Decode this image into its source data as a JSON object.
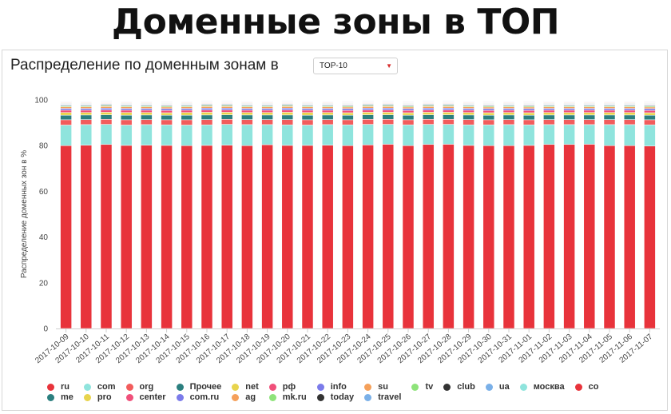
{
  "page": {
    "heading": "Доменные зоны в ТОП"
  },
  "widget": {
    "title": "Распределение по доменным зонам в",
    "select": {
      "value": "TOP-10"
    }
  },
  "chart_data": {
    "type": "bar",
    "stacked": true,
    "ylabel": "Распределение доменных зон в %",
    "xlabel": "",
    "ylim": [
      0,
      100
    ],
    "yticks": [
      0,
      20,
      40,
      60,
      80,
      100
    ],
    "grid": false,
    "legend_position": "bottom",
    "categories": [
      "2017-10-09",
      "2017-10-10",
      "2017-10-11",
      "2017-10-12",
      "2017-10-13",
      "2017-10-14",
      "2017-10-15",
      "2017-10-16",
      "2017-10-17",
      "2017-10-18",
      "2017-10-19",
      "2017-10-20",
      "2017-10-21",
      "2017-10-22",
      "2017-10-23",
      "2017-10-24",
      "2017-10-25",
      "2017-10-26",
      "2017-10-27",
      "2017-10-28",
      "2017-10-29",
      "2017-10-30",
      "2017-10-31",
      "2017-11-01",
      "2017-11-02",
      "2017-11-03",
      "2017-11-04",
      "2017-11-05",
      "2017-11-06",
      "2017-11-07"
    ],
    "series": [
      {
        "name": "ru",
        "color": "#e8333b",
        "values": [
          80.0,
          80.2,
          80.5,
          80.1,
          80.2,
          80.1,
          80.0,
          80.1,
          80.2,
          80.0,
          80.4,
          80.1,
          80.1,
          80.2,
          80.0,
          80.3,
          80.6,
          80.0,
          80.5,
          80.6,
          80.1,
          80.0,
          80.0,
          80.1,
          80.5,
          80.5,
          80.6,
          80.0,
          80.0,
          79.8
        ]
      },
      {
        "name": "com",
        "color": "#8fe4dd",
        "values": [
          9.0,
          9.0,
          8.8,
          8.9,
          9.0,
          9.0,
          9.0,
          9.0,
          9.1,
          9.2,
          8.8,
          9.0,
          8.9,
          9.0,
          9.1,
          9.0,
          8.7,
          9.1,
          8.8,
          8.7,
          9.0,
          9.1,
          9.2,
          9.0,
          8.7,
          8.7,
          8.6,
          9.2,
          9.2,
          9.3
        ]
      },
      {
        "name": "org",
        "color": "#f25c5c",
        "values": [
          2.3,
          2.2,
          2.2,
          2.3,
          2.2,
          2.2,
          2.3,
          2.3,
          2.2,
          2.2,
          2.2,
          2.3,
          2.3,
          2.2,
          2.2,
          2.2,
          2.2,
          2.2,
          2.2,
          2.2,
          2.3,
          2.2,
          2.2,
          2.2,
          2.2,
          2.2,
          2.2,
          2.2,
          2.2,
          2.2
        ]
      },
      {
        "name": "Прочее",
        "color": "#2b7f7f",
        "values": [
          2.0,
          2.0,
          2.0,
          2.0,
          2.0,
          2.0,
          2.0,
          2.0,
          2.0,
          2.0,
          2.0,
          2.0,
          2.0,
          2.0,
          2.0,
          2.0,
          2.0,
          2.0,
          2.0,
          2.0,
          2.0,
          2.0,
          2.0,
          2.0,
          2.0,
          2.0,
          2.0,
          2.0,
          2.0,
          2.0
        ]
      },
      {
        "name": "net",
        "color": "#e8d44d",
        "values": [
          1.2,
          1.1,
          1.1,
          1.2,
          1.1,
          1.1,
          1.2,
          1.2,
          1.1,
          1.1,
          1.1,
          1.2,
          1.2,
          1.1,
          1.1,
          1.1,
          1.1,
          1.1,
          1.1,
          1.1,
          1.1,
          1.1,
          1.1,
          1.1,
          1.1,
          1.1,
          1.1,
          1.1,
          1.1,
          1.1
        ]
      },
      {
        "name": "рф",
        "color": "#f0507a",
        "values": [
          1.0,
          1.0,
          1.0,
          1.0,
          1.0,
          1.0,
          1.0,
          1.0,
          1.0,
          1.0,
          1.0,
          1.0,
          1.0,
          1.0,
          1.0,
          1.0,
          1.0,
          1.0,
          1.0,
          1.0,
          1.0,
          1.0,
          1.0,
          1.0,
          1.0,
          1.0,
          1.0,
          1.0,
          1.0,
          1.0
        ]
      },
      {
        "name": "info",
        "color": "#7b7bea",
        "values": [
          0.8,
          0.8,
          0.8,
          0.8,
          0.8,
          0.8,
          0.8,
          0.8,
          0.8,
          0.8,
          0.8,
          0.8,
          0.8,
          0.8,
          0.8,
          0.8,
          0.8,
          0.8,
          0.8,
          0.8,
          0.8,
          0.8,
          0.8,
          0.8,
          0.8,
          0.8,
          0.8,
          0.8,
          0.8,
          0.8
        ]
      },
      {
        "name": "su",
        "color": "#f5a05a",
        "values": [
          0.7,
          0.7,
          0.7,
          0.7,
          0.7,
          0.7,
          0.7,
          0.7,
          0.7,
          0.7,
          0.7,
          0.7,
          0.7,
          0.7,
          0.7,
          0.7,
          0.7,
          0.7,
          0.7,
          0.7,
          0.7,
          0.7,
          0.7,
          0.7,
          0.7,
          0.7,
          0.7,
          0.7,
          0.7,
          0.7
        ]
      },
      {
        "name": "tv",
        "color": "#8ee37a",
        "values": [
          0.4,
          0.4,
          0.4,
          0.4,
          0.4,
          0.4,
          0.4,
          0.4,
          0.4,
          0.4,
          0.4,
          0.4,
          0.4,
          0.4,
          0.4,
          0.4,
          0.4,
          0.4,
          0.4,
          0.4,
          0.4,
          0.4,
          0.4,
          0.4,
          0.4,
          0.4,
          0.4,
          0.4,
          0.4,
          0.4
        ]
      },
      {
        "name": "club",
        "color": "#333333",
        "values": [
          0.3,
          0.3,
          0.3,
          0.3,
          0.3,
          0.3,
          0.3,
          0.3,
          0.3,
          0.3,
          0.3,
          0.3,
          0.3,
          0.3,
          0.3,
          0.3,
          0.3,
          0.3,
          0.3,
          0.3,
          0.3,
          0.3,
          0.3,
          0.3,
          0.3,
          0.3,
          0.3,
          0.3,
          0.3,
          0.3
        ]
      },
      {
        "name": "ua",
        "color": "#7ab0e8",
        "values": [
          0.3,
          0.3,
          0.3,
          0.3,
          0.3,
          0.3,
          0.3,
          0.3,
          0.3,
          0.3,
          0.3,
          0.3,
          0.3,
          0.3,
          0.3,
          0.3,
          0.3,
          0.3,
          0.3,
          0.3,
          0.3,
          0.3,
          0.3,
          0.3,
          0.3,
          0.3,
          0.3,
          0.3,
          0.3,
          0.3
        ]
      },
      {
        "name": "москва",
        "color": "#8fe4dd",
        "values": [
          0.2,
          0.2,
          0.2,
          0.2,
          0.2,
          0.2,
          0.2,
          0.2,
          0.2,
          0.2,
          0.2,
          0.2,
          0.2,
          0.2,
          0.2,
          0.2,
          0.2,
          0.2,
          0.2,
          0.2,
          0.2,
          0.2,
          0.2,
          0.2,
          0.2,
          0.2,
          0.2,
          0.2,
          0.2,
          0.2
        ]
      },
      {
        "name": "co",
        "color": "#e8333b",
        "values": [
          0.2,
          0.2,
          0.2,
          0.2,
          0.2,
          0.2,
          0.2,
          0.2,
          0.2,
          0.2,
          0.2,
          0.2,
          0.2,
          0.2,
          0.2,
          0.2,
          0.2,
          0.2,
          0.2,
          0.2,
          0.2,
          0.2,
          0.2,
          0.2,
          0.2,
          0.2,
          0.2,
          0.2,
          0.2,
          0.2
        ]
      },
      {
        "name": "me",
        "color": "#2b7f7f",
        "values": [
          0.2,
          0.2,
          0.2,
          0.2,
          0.2,
          0.2,
          0.2,
          0.2,
          0.2,
          0.2,
          0.2,
          0.2,
          0.2,
          0.2,
          0.2,
          0.2,
          0.2,
          0.2,
          0.2,
          0.2,
          0.2,
          0.2,
          0.2,
          0.2,
          0.2,
          0.2,
          0.2,
          0.2,
          0.2,
          0.2
        ]
      },
      {
        "name": "pro",
        "color": "#e8d44d",
        "values": [
          0.2,
          0.2,
          0.2,
          0.2,
          0.2,
          0.2,
          0.2,
          0.2,
          0.2,
          0.2,
          0.2,
          0.2,
          0.2,
          0.2,
          0.2,
          0.2,
          0.2,
          0.2,
          0.2,
          0.2,
          0.2,
          0.2,
          0.2,
          0.2,
          0.2,
          0.2,
          0.2,
          0.2,
          0.2,
          0.2
        ]
      },
      {
        "name": "center",
        "color": "#f0507a",
        "values": [
          0.2,
          0.2,
          0.2,
          0.2,
          0.2,
          0.2,
          0.2,
          0.2,
          0.2,
          0.2,
          0.2,
          0.2,
          0.2,
          0.2,
          0.2,
          0.2,
          0.2,
          0.2,
          0.2,
          0.2,
          0.2,
          0.2,
          0.2,
          0.2,
          0.2,
          0.2,
          0.2,
          0.2,
          0.2,
          0.2
        ]
      },
      {
        "name": "com.ru",
        "color": "#7b7bea",
        "values": [
          0.2,
          0.2,
          0.2,
          0.2,
          0.2,
          0.2,
          0.2,
          0.2,
          0.2,
          0.2,
          0.2,
          0.2,
          0.2,
          0.2,
          0.2,
          0.2,
          0.2,
          0.2,
          0.2,
          0.2,
          0.2,
          0.2,
          0.2,
          0.2,
          0.2,
          0.2,
          0.2,
          0.2,
          0.2,
          0.2
        ]
      },
      {
        "name": "ag",
        "color": "#f5a05a",
        "values": [
          0.1,
          0.1,
          0.1,
          0.1,
          0.1,
          0.1,
          0.1,
          0.1,
          0.1,
          0.1,
          0.1,
          0.1,
          0.1,
          0.1,
          0.1,
          0.1,
          0.1,
          0.1,
          0.1,
          0.1,
          0.1,
          0.1,
          0.1,
          0.1,
          0.1,
          0.1,
          0.1,
          0.1,
          0.1,
          0.1
        ]
      },
      {
        "name": "mk.ru",
        "color": "#8ee37a",
        "values": [
          0.1,
          0.1,
          0.1,
          0.1,
          0.1,
          0.1,
          0.1,
          0.1,
          0.1,
          0.1,
          0.1,
          0.1,
          0.1,
          0.1,
          0.1,
          0.1,
          0.1,
          0.1,
          0.1,
          0.1,
          0.1,
          0.1,
          0.1,
          0.1,
          0.1,
          0.1,
          0.1,
          0.1,
          0.1,
          0.1
        ]
      },
      {
        "name": "today",
        "color": "#333333",
        "values": [
          0.1,
          0.1,
          0.1,
          0.1,
          0.1,
          0.1,
          0.1,
          0.1,
          0.1,
          0.1,
          0.1,
          0.1,
          0.1,
          0.1,
          0.1,
          0.1,
          0.1,
          0.1,
          0.1,
          0.1,
          0.1,
          0.1,
          0.1,
          0.1,
          0.1,
          0.1,
          0.1,
          0.1,
          0.1,
          0.1
        ]
      },
      {
        "name": "travel",
        "color": "#7ab0e8",
        "values": [
          0.1,
          0.1,
          0.1,
          0.1,
          0.1,
          0.1,
          0.1,
          0.1,
          0.1,
          0.1,
          0.1,
          0.1,
          0.1,
          0.1,
          0.1,
          0.1,
          0.1,
          0.1,
          0.1,
          0.1,
          0.1,
          0.1,
          0.1,
          0.1,
          0.1,
          0.1,
          0.1,
          0.1,
          0.1,
          0.1
        ]
      }
    ]
  }
}
